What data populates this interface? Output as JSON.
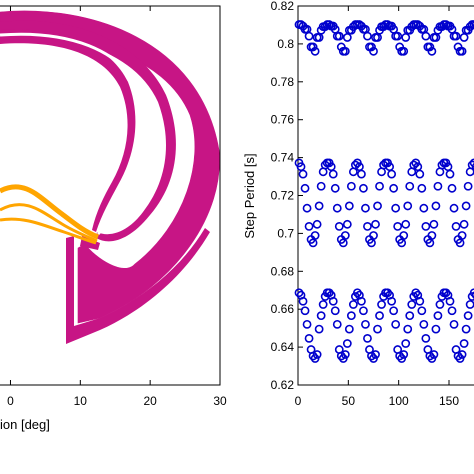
{
  "chart_data": [
    {
      "type": "area",
      "xlabel": "ion [deg]",
      "ylabel": "",
      "xlim": [
        -1.5,
        30
      ],
      "x_ticks": [
        {
          "value": 0,
          "label": "0"
        },
        {
          "value": 10,
          "label": "10"
        },
        {
          "value": 20,
          "label": "20"
        },
        {
          "value": 30,
          "label": "30"
        }
      ],
      "grid": false,
      "legend": "none",
      "series": [
        {
          "color": "#c71585",
          "shape": "nested crescent bands"
        },
        {
          "color": "#ffa500",
          "shape": "thin converging bands"
        }
      ]
    },
    {
      "type": "scatter",
      "xlabel": "",
      "ylabel": "Step Period [s]",
      "xlim": [
        0,
        180
      ],
      "ylim": [
        0.62,
        0.82
      ],
      "x_ticks": [
        {
          "value": 0,
          "label": "0"
        },
        {
          "value": 50,
          "label": "50"
        },
        {
          "value": 100,
          "label": "100"
        },
        {
          "value": 150,
          "label": "150"
        }
      ],
      "y_ticks": [
        {
          "value": 0.62,
          "label": "0.62"
        },
        {
          "value": 0.64,
          "label": "0.64"
        },
        {
          "value": 0.66,
          "label": "0.66"
        },
        {
          "value": 0.68,
          "label": "0.68"
        },
        {
          "value": 0.7,
          "label": "0.7"
        },
        {
          "value": 0.72,
          "label": "0.72"
        },
        {
          "value": 0.74,
          "label": "0.74"
        },
        {
          "value": 0.76,
          "label": "0.76"
        },
        {
          "value": 0.78,
          "label": "0.78"
        },
        {
          "value": 0.8,
          "label": "0.8"
        },
        {
          "value": 0.82,
          "label": "0.82"
        }
      ],
      "grid": false,
      "legend": "none",
      "marker": "open circle",
      "marker_color": "#0000cd",
      "bands": [
        {
          "offset": 0,
          "values": [
            0.8102,
            0.8094,
            0.8077,
            0.8041,
            0.7984,
            0.7961,
            0.8034,
            0.8072,
            0.8091,
            0.8102
          ]
        },
        {
          "offset": 0,
          "values": [
            0.7372,
            0.7352,
            0.7313,
            0.7238,
            0.7133,
            0.7037,
            0.6968,
            0.695,
            0.6989,
            0.7048,
            0.7145,
            0.7249,
            0.7325,
            0.7361,
            0.7372
          ]
        },
        {
          "offset": 0,
          "values": [
            0.6687,
            0.6674,
            0.6642,
            0.6592,
            0.652,
            0.6446,
            0.6387,
            0.6353,
            0.634,
            0.6361,
            0.6419,
            0.6495,
            0.6566,
            0.6625,
            0.6667,
            0.6687
          ]
        }
      ],
      "band_period": 29,
      "x_start": 1
    }
  ]
}
